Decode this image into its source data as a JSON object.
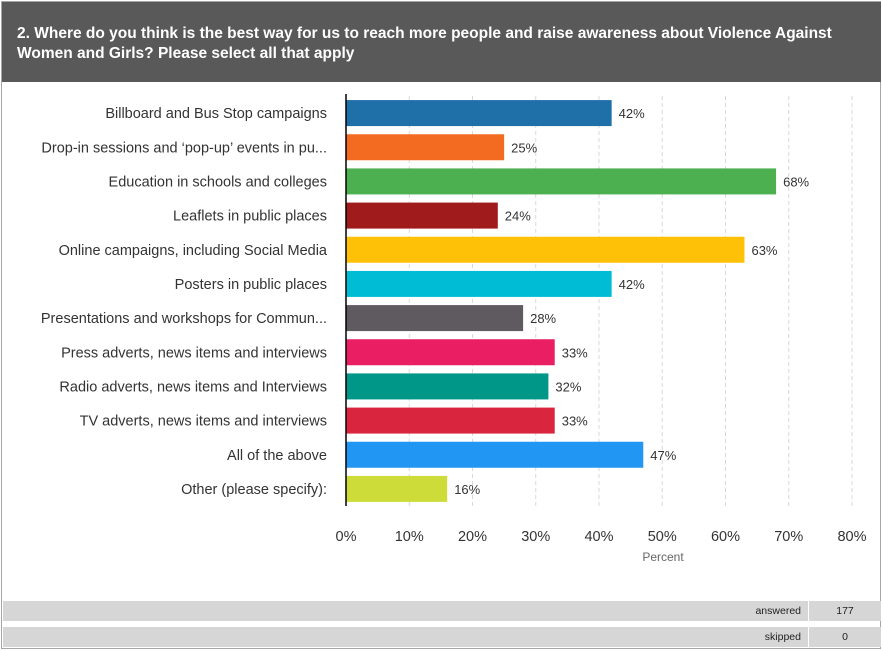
{
  "question": "2. Where do you think is the best way for us to reach more people and raise awareness about Violence Against Women and Girls? Please select all that apply",
  "chart_data": {
    "type": "bar",
    "orientation": "horizontal",
    "categories": [
      "Billboard and Bus Stop campaigns",
      "Drop-in sessions and ‘pop-up’ events in pu...",
      "Education in schools and colleges",
      "Leaflets in public places",
      "Online campaigns, including Social Media",
      "Posters in public places",
      "Presentations and workshops for Commun...",
      "Press adverts, news items and interviews",
      "Radio adverts, news items and Interviews",
      "TV adverts, news items and interviews",
      "All of the above",
      "Other (please specify):"
    ],
    "values": [
      42,
      25,
      68,
      24,
      63,
      42,
      28,
      33,
      32,
      33,
      47,
      16
    ],
    "value_labels": [
      "42%",
      "25%",
      "68%",
      "24%",
      "63%",
      "42%",
      "28%",
      "33%",
      "32%",
      "33%",
      "47%",
      "16%"
    ],
    "colors": [
      "#1f6fa8",
      "#f26b21",
      "#4caf50",
      "#a01c1c",
      "#ffc107",
      "#00bcd4",
      "#5f5a60",
      "#e91e63",
      "#009688",
      "#d9263e",
      "#2196f3",
      "#cddc39"
    ],
    "xlim": [
      0,
      80
    ],
    "xticks": [
      0,
      10,
      20,
      30,
      40,
      50,
      60,
      70,
      80
    ],
    "xtick_labels": [
      "0%",
      "10%",
      "20%",
      "30%",
      "40%",
      "50%",
      "60%",
      "70%",
      "80%"
    ],
    "xlabel": "Percent",
    "grid": "vertical dashed"
  },
  "summary": {
    "answered_label": "answered",
    "answered_value": "177",
    "skipped_label": "skipped",
    "skipped_value": "0"
  }
}
